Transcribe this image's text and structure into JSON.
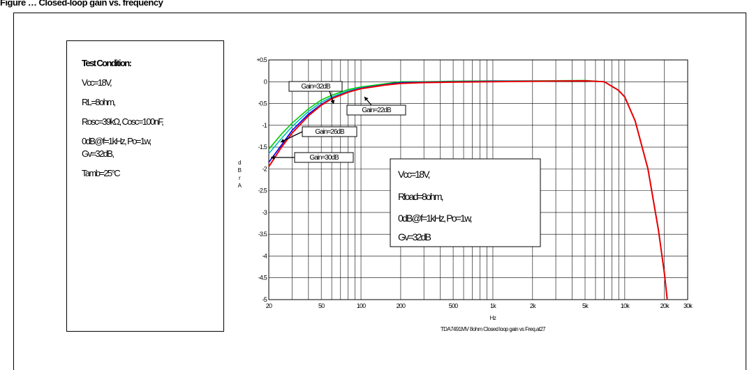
{
  "page_title": "Figure … Closed-loop gain vs. frequency",
  "test_condition": {
    "heading": "Test Condition:",
    "lines": [
      "Vcc=18V,",
      "RL=8ohm,",
      "Rosc=39kΩ, Cosc=100nF,",
      "0dB@f=1kHz, Po=1w,",
      "Gv=32dB,",
      "Tamb=25°C"
    ]
  },
  "chart_data": {
    "type": "line",
    "x_scale": "log",
    "xlim": [
      20,
      30000
    ],
    "ylim": [
      -5,
      0.5
    ],
    "xlabel": "Hz",
    "ylabel": "dBr A",
    "caption": "TDA7491MV 8ohm Closed loop gain vs Freq.at27",
    "grid": true,
    "x_ticks": [
      {
        "v": 20,
        "label": "20"
      },
      {
        "v": 50,
        "label": "50"
      },
      {
        "v": 100,
        "label": "100"
      },
      {
        "v": 200,
        "label": "200"
      },
      {
        "v": 500,
        "label": "500"
      },
      {
        "v": 1000,
        "label": "1k"
      },
      {
        "v": 2000,
        "label": "2k"
      },
      {
        "v": 5000,
        "label": "5k"
      },
      {
        "v": 10000,
        "label": "10k"
      },
      {
        "v": 20000,
        "label": "20k"
      },
      {
        "v": 30000,
        "label": "30k"
      }
    ],
    "y_ticks": [
      {
        "v": 0.5,
        "label": "+0.5"
      },
      {
        "v": 0,
        "label": "0"
      },
      {
        "v": -0.5,
        "label": "-0.5"
      },
      {
        "v": -1,
        "label": "-1"
      },
      {
        "v": -1.5,
        "label": "-1.5"
      },
      {
        "v": -2,
        "label": "-2"
      },
      {
        "v": -2.5,
        "label": "-2.5"
      },
      {
        "v": -3,
        "label": "-3"
      },
      {
        "v": -3.5,
        "label": "-3.5"
      },
      {
        "v": -4,
        "label": "-4"
      },
      {
        "v": -4.5,
        "label": "-4.5"
      },
      {
        "v": -5,
        "label": "-5"
      }
    ],
    "series": [
      {
        "name": "Gain=32dB",
        "color": "#00cc00",
        "x": [
          20,
          25,
          30,
          40,
          50,
          60,
          80,
          100,
          150,
          200,
          300,
          500,
          1000,
          2000,
          5000,
          7000,
          9000,
          10000,
          12000,
          15000,
          18000,
          20000,
          21000
        ],
        "y": [
          -1.55,
          -1.2,
          -0.95,
          -0.62,
          -0.42,
          -0.31,
          -0.18,
          -0.12,
          -0.05,
          0.0,
          0.0,
          0.01,
          0.02,
          0.02,
          0.03,
          0.0,
          -0.2,
          -0.35,
          -0.9,
          -2.0,
          -3.4,
          -4.4,
          -5.0
        ]
      },
      {
        "name": "Gain=26dB",
        "color": "#00bbbb",
        "x": [
          20,
          25,
          30,
          40,
          50,
          60,
          80,
          100,
          150,
          200,
          300,
          500,
          1000,
          2000,
          5000,
          7000,
          9000,
          10000,
          12000,
          15000,
          18000,
          20000,
          21000
        ],
        "y": [
          -1.65,
          -1.3,
          -1.03,
          -0.68,
          -0.47,
          -0.35,
          -0.21,
          -0.14,
          -0.07,
          -0.02,
          -0.01,
          0.0,
          0.01,
          0.02,
          0.02,
          0.0,
          -0.2,
          -0.35,
          -0.9,
          -2.0,
          -3.4,
          -4.4,
          -5.0
        ]
      },
      {
        "name": "Gain=30dB",
        "color": "#0000ff",
        "x": [
          20,
          25,
          30,
          40,
          50,
          60,
          80,
          100,
          150,
          200,
          300,
          500,
          1000,
          2000,
          5000,
          7000,
          9000,
          10000,
          12000,
          15000,
          18000,
          20000,
          21000
        ],
        "y": [
          -1.85,
          -1.45,
          -1.12,
          -0.74,
          -0.52,
          -0.38,
          -0.23,
          -0.15,
          -0.07,
          -0.02,
          -0.01,
          0.0,
          0.01,
          0.01,
          0.02,
          0.0,
          -0.2,
          -0.35,
          -0.9,
          -2.0,
          -3.4,
          -4.4,
          -5.0
        ]
      },
      {
        "name": "Gain=22dB",
        "color": "#ee0000",
        "x": [
          20,
          25,
          30,
          40,
          50,
          60,
          80,
          100,
          150,
          200,
          300,
          500,
          1000,
          2000,
          5000,
          7000,
          9000,
          10000,
          12000,
          15000,
          18000,
          20000,
          21000
        ],
        "y": [
          -1.95,
          -1.5,
          -1.18,
          -0.78,
          -0.54,
          -0.39,
          -0.24,
          -0.16,
          -0.08,
          -0.04,
          -0.02,
          -0.01,
          0.0,
          0.01,
          0.02,
          0.0,
          -0.2,
          -0.35,
          -0.9,
          -2.0,
          -3.4,
          -4.4,
          -5.0
        ]
      }
    ],
    "annotations": [
      {
        "text": "Gain=32dB"
      },
      {
        "text": "Gain=22dB"
      },
      {
        "text": "Gain=26dB"
      },
      {
        "text": "Gain=30dB"
      }
    ],
    "inset_box": [
      "Vcc=18V,",
      "Rload=8ohm,",
      "0dB@f=1kHz, Po=1w,",
      "Gv=32dB"
    ]
  }
}
